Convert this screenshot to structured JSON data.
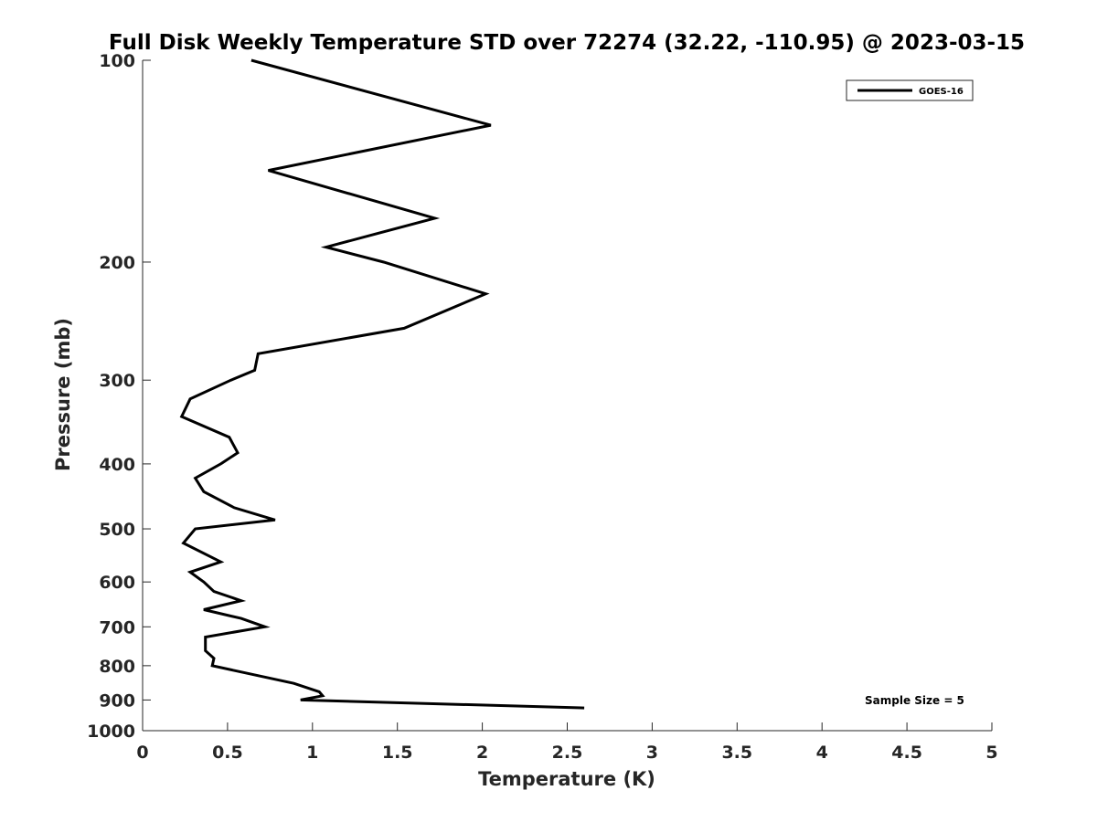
{
  "chart_data": {
    "type": "line",
    "title": "Full Disk Weekly Temperature STD over 72274 (32.22, -110.95) @ 2023-03-15",
    "xlabel": "Temperature (K)",
    "ylabel": "Pressure (mb)",
    "xlim": [
      0,
      5
    ],
    "ylim": [
      100,
      1000
    ],
    "y_scale": "log",
    "y_reversed": true,
    "grid": false,
    "legend_position": "top-right",
    "x_ticks": [
      0,
      0.5,
      1,
      1.5,
      2,
      2.5,
      3,
      3.5,
      4,
      4.5,
      5
    ],
    "x_tick_labels": [
      "0",
      "0.5",
      "1",
      "1.5",
      "2",
      "2.5",
      "3",
      "3.5",
      "4",
      "4.5",
      "5"
    ],
    "y_ticks": [
      100,
      200,
      300,
      400,
      500,
      600,
      700,
      800,
      900,
      1000
    ],
    "y_tick_labels": [
      "100",
      "200",
      "300",
      "400",
      "500",
      "600",
      "700",
      "800",
      "900",
      "1000"
    ],
    "series": [
      {
        "name": "GOES-16",
        "color": "#000000",
        "points": [
          {
            "x": 0.64,
            "y": 100
          },
          {
            "x": 2.05,
            "y": 125
          },
          {
            "x": 0.74,
            "y": 146
          },
          {
            "x": 1.72,
            "y": 172
          },
          {
            "x": 1.08,
            "y": 190
          },
          {
            "x": 1.42,
            "y": 200
          },
          {
            "x": 2.02,
            "y": 223
          },
          {
            "x": 1.54,
            "y": 251
          },
          {
            "x": 0.68,
            "y": 274
          },
          {
            "x": 0.66,
            "y": 290
          },
          {
            "x": 0.52,
            "y": 300
          },
          {
            "x": 0.28,
            "y": 320
          },
          {
            "x": 0.23,
            "y": 340
          },
          {
            "x": 0.51,
            "y": 365
          },
          {
            "x": 0.56,
            "y": 385
          },
          {
            "x": 0.46,
            "y": 400
          },
          {
            "x": 0.31,
            "y": 420
          },
          {
            "x": 0.36,
            "y": 440
          },
          {
            "x": 0.54,
            "y": 465
          },
          {
            "x": 0.78,
            "y": 485
          },
          {
            "x": 0.31,
            "y": 500
          },
          {
            "x": 0.24,
            "y": 525
          },
          {
            "x": 0.46,
            "y": 560
          },
          {
            "x": 0.28,
            "y": 580
          },
          {
            "x": 0.36,
            "y": 600
          },
          {
            "x": 0.42,
            "y": 620
          },
          {
            "x": 0.58,
            "y": 640
          },
          {
            "x": 0.36,
            "y": 660
          },
          {
            "x": 0.58,
            "y": 680
          },
          {
            "x": 0.72,
            "y": 700
          },
          {
            "x": 0.37,
            "y": 725
          },
          {
            "x": 0.37,
            "y": 760
          },
          {
            "x": 0.42,
            "y": 780
          },
          {
            "x": 0.41,
            "y": 800
          },
          {
            "x": 0.89,
            "y": 850
          },
          {
            "x": 1.04,
            "y": 875
          },
          {
            "x": 1.06,
            "y": 887
          },
          {
            "x": 0.93,
            "y": 900
          },
          {
            "x": 2.6,
            "y": 925
          }
        ]
      }
    ],
    "legend": [
      "GOES-16"
    ],
    "annotations": [
      "Sample Size = 5"
    ]
  }
}
